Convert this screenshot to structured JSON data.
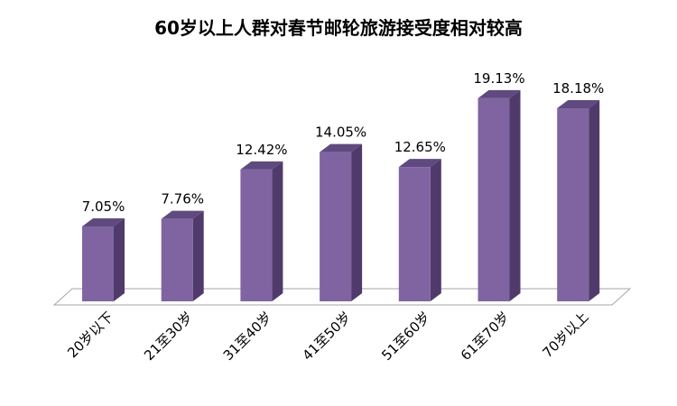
{
  "chart_data": {
    "type": "bar",
    "title": "60岁以上人群对春节邮轮旅游接受度相对较高",
    "categories": [
      "20岁以下",
      "21至30岁",
      "31至40岁",
      "41至50岁",
      "51至60岁",
      "61至70岁",
      "70岁以上"
    ],
    "values": [
      7.05,
      7.76,
      12.42,
      14.05,
      12.65,
      19.13,
      18.18
    ],
    "value_labels": [
      "7.05%",
      "7.76%",
      "12.42%",
      "14.05%",
      "12.65%",
      "19.13%",
      "18.18%"
    ],
    "ylim": [
      0,
      20
    ],
    "grid": false,
    "legend": "none",
    "bar_color": "#8064a2",
    "bar_side_color": "#4f3a6b",
    "bar_top_color": "#5f4a7f"
  }
}
